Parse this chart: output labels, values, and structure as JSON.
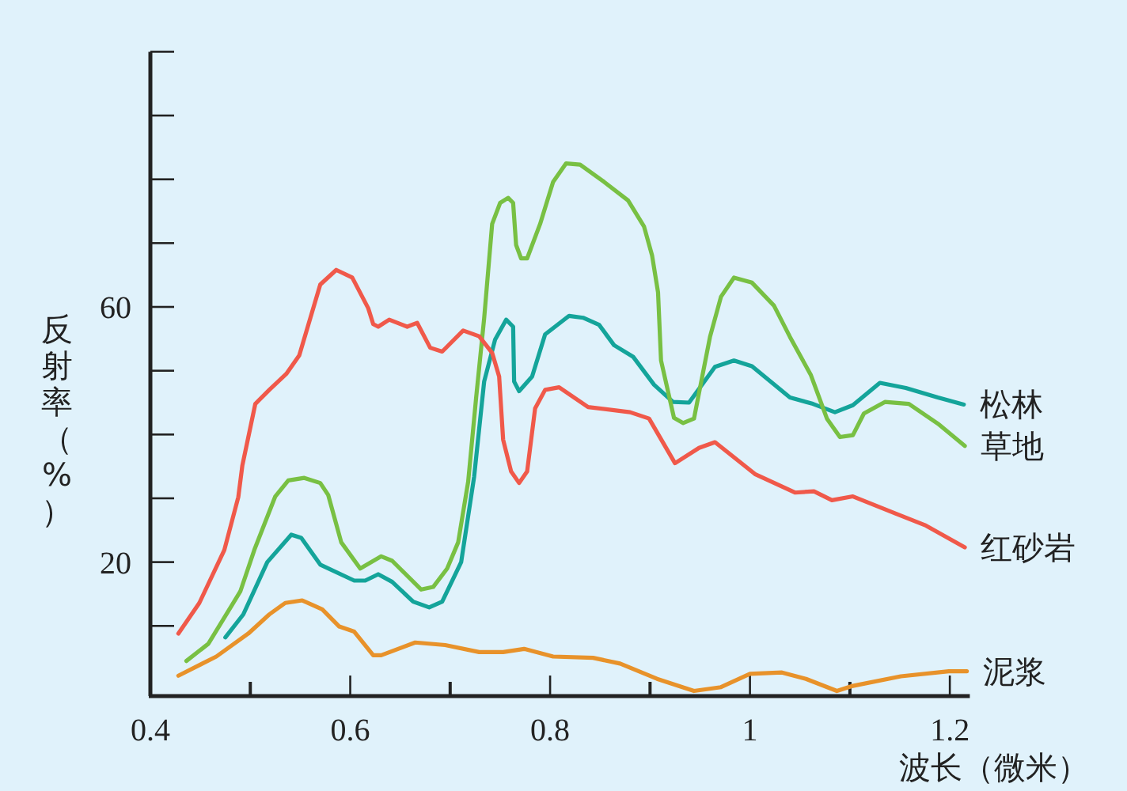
{
  "chart_data": {
    "type": "line",
    "xlabel": "波长（微米）",
    "ylabel": "反射率（%）",
    "xlim": [
      0.4,
      1.22
    ],
    "ylim": [
      -1,
      100
    ],
    "xticks": [
      0.4,
      {
        "value": 0.5,
        "label": null
      },
      0.6,
      {
        "value": 0.7,
        "label": null
      },
      0.8,
      {
        "value": 0.9,
        "label": null
      },
      1.0,
      {
        "value": 1.1,
        "label": null
      },
      1.2
    ],
    "yticks": [
      {
        "value": 10,
        "label": null
      },
      20,
      {
        "value": 30,
        "label": null
      },
      {
        "value": 40,
        "label": null
      },
      {
        "value": 50,
        "label": null
      },
      60,
      {
        "value": 70,
        "label": null
      },
      {
        "value": 80,
        "label": null
      },
      {
        "value": 90,
        "label": null
      },
      {
        "value": 100,
        "label": null
      }
    ],
    "grid": false,
    "legend": false,
    "series": [
      {
        "name": "松林",
        "color": "#14a49a",
        "x": [
          0.475,
          0.493,
          0.517,
          0.541,
          0.551,
          0.57,
          0.604,
          0.615,
          0.628,
          0.642,
          0.663,
          0.679,
          0.692,
          0.711,
          0.724,
          0.734,
          0.745,
          0.756,
          0.763,
          0.764,
          0.769,
          0.782,
          0.795,
          0.819,
          0.833,
          0.849,
          0.864,
          0.883,
          0.904,
          0.923,
          0.939,
          0.965,
          0.984,
          1.002,
          1.04,
          1.063,
          1.085,
          1.103,
          1.13,
          1.156,
          1.188,
          1.214
        ],
        "values": [
          8.2,
          11.8,
          20.0,
          24.3,
          23.8,
          19.6,
          17.1,
          17.1,
          18.1,
          16.9,
          13.8,
          12.9,
          13.8,
          20.0,
          33.4,
          48.3,
          54.9,
          58.0,
          56.9,
          48.3,
          46.8,
          49.1,
          55.7,
          58.6,
          58.3,
          57.2,
          54.0,
          52.2,
          47.8,
          45.1,
          45.0,
          50.6,
          51.6,
          50.7,
          45.8,
          44.8,
          43.5,
          44.6,
          48.1,
          47.3,
          45.8,
          44.7
        ]
      },
      {
        "name": "草地",
        "color": "#78c043",
        "x": [
          0.436,
          0.458,
          0.49,
          0.504,
          0.525,
          0.538,
          0.554,
          0.57,
          0.578,
          0.591,
          0.61,
          0.631,
          0.642,
          0.671,
          0.683,
          0.697,
          0.708,
          0.718,
          0.726,
          0.734,
          0.742,
          0.75,
          0.758,
          0.763,
          0.766,
          0.771,
          0.777,
          0.79,
          0.803,
          0.816,
          0.83,
          0.854,
          0.878,
          0.894,
          0.902,
          0.908,
          0.911,
          0.924,
          0.933,
          0.944,
          0.96,
          0.971,
          0.984,
          1.002,
          1.024,
          1.04,
          1.061,
          1.077,
          1.09,
          1.103,
          1.114,
          1.135,
          1.159,
          1.188,
          1.215
        ],
        "values": [
          4.5,
          7.2,
          15.4,
          21.9,
          30.3,
          32.8,
          33.2,
          32.4,
          30.5,
          23.1,
          19.0,
          20.9,
          20.2,
          15.7,
          16.1,
          19.0,
          23.1,
          32.6,
          45.8,
          58.2,
          73.0,
          76.3,
          77.1,
          76.3,
          69.7,
          67.6,
          67.6,
          73.0,
          79.6,
          82.5,
          82.3,
          79.6,
          76.7,
          72.6,
          68.1,
          62.3,
          51.6,
          42.6,
          41.8,
          42.5,
          55.3,
          61.6,
          64.6,
          63.8,
          60.2,
          55.3,
          49.3,
          42.5,
          39.6,
          39.9,
          43.3,
          45.1,
          44.8,
          41.7,
          38.2
        ]
      },
      {
        "name": "红砂岩",
        "color": "#f0594a",
        "x": [
          0.428,
          0.449,
          0.474,
          0.488,
          0.492,
          0.505,
          0.519,
          0.536,
          0.549,
          0.57,
          0.586,
          0.602,
          0.618,
          0.623,
          0.628,
          0.639,
          0.657,
          0.667,
          0.68,
          0.692,
          0.713,
          0.729,
          0.742,
          0.749,
          0.753,
          0.761,
          0.769,
          0.777,
          0.785,
          0.795,
          0.809,
          0.838,
          0.88,
          0.899,
          0.925,
          0.949,
          0.965,
          1.005,
          1.045,
          1.064,
          1.082,
          1.103,
          1.146,
          1.175,
          1.215
        ],
        "values": [
          8.8,
          13.6,
          21.9,
          30.2,
          35.1,
          44.8,
          47.0,
          49.5,
          52.4,
          63.5,
          65.8,
          64.6,
          59.8,
          57.3,
          56.9,
          58.0,
          56.9,
          57.5,
          53.6,
          53.0,
          56.3,
          55.4,
          52.8,
          49.1,
          39.2,
          34.2,
          32.4,
          34.2,
          44.1,
          47.0,
          47.4,
          44.3,
          43.5,
          42.5,
          35.5,
          37.9,
          38.8,
          33.8,
          30.9,
          31.1,
          29.7,
          30.3,
          27.6,
          25.8,
          22.3
        ]
      },
      {
        "name": "泥浆",
        "color": "#e8922a",
        "x": [
          0.428,
          0.466,
          0.498,
          0.519,
          0.535,
          0.552,
          0.572,
          0.589,
          0.604,
          0.623,
          0.631,
          0.665,
          0.695,
          0.729,
          0.753,
          0.774,
          0.803,
          0.843,
          0.87,
          0.907,
          0.944,
          0.971,
          1.0,
          1.032,
          1.056,
          1.087,
          1.103,
          1.151,
          1.199,
          1.217
        ],
        "values": [
          2.2,
          5.2,
          8.8,
          11.8,
          13.6,
          14.0,
          12.6,
          9.9,
          9.1,
          5.4,
          5.4,
          7.4,
          7.0,
          5.9,
          5.9,
          6.4,
          5.2,
          5.0,
          4.1,
          1.7,
          -0.2,
          0.4,
          2.5,
          2.7,
          1.7,
          -0.2,
          0.6,
          2.1,
          2.9,
          2.9
        ]
      }
    ]
  }
}
